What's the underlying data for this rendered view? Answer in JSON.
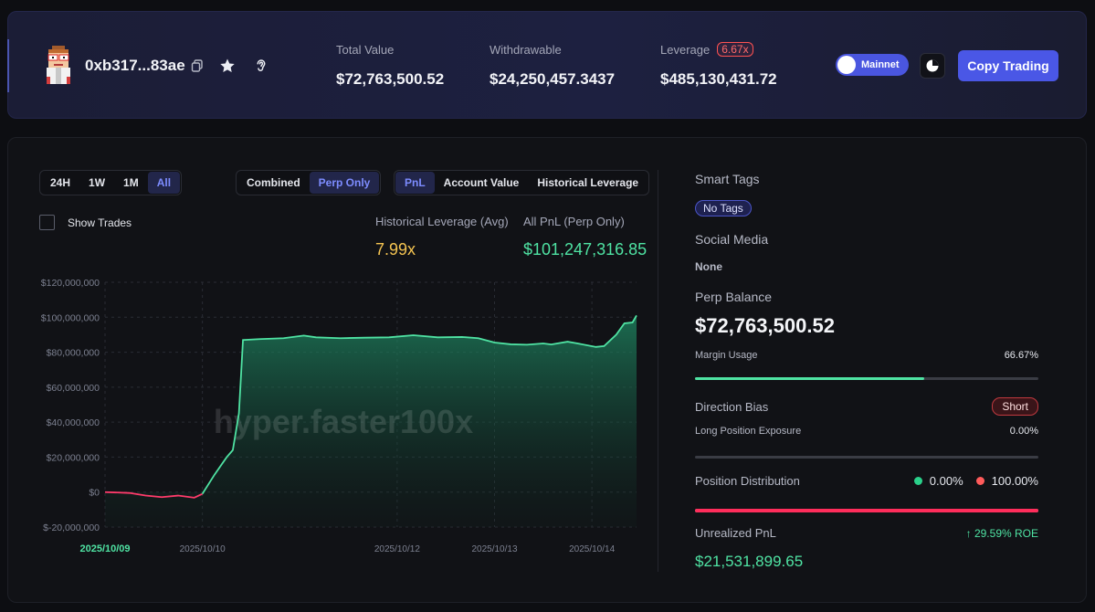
{
  "header": {
    "address": "0xb317...83ae",
    "stats": [
      {
        "label": "Total Value",
        "value": "$72,763,500.52"
      },
      {
        "label": "Withdrawable",
        "value": "$24,250,457.3437"
      },
      {
        "label": "Leverage",
        "value": "$485,130,431.72",
        "badge": "6.67x"
      }
    ],
    "network_label": "Mainnet",
    "copy_trading_label": "Copy Trading"
  },
  "controls": {
    "time_ranges": [
      "24H",
      "1W",
      "1M",
      "All"
    ],
    "time_active": "All",
    "scope": [
      "Combined",
      "Perp Only"
    ],
    "scope_active": "Perp Only",
    "views": [
      "PnL",
      "Account Value",
      "Historical Leverage"
    ],
    "view_active": "PnL",
    "show_trades_label": "Show Trades"
  },
  "metrics": {
    "hist_leverage_label": "Historical Leverage (Avg)",
    "hist_leverage_value": "7.99x",
    "all_pnl_label": "All PnL (Perp Only)",
    "all_pnl_value": "$101,247,316.85"
  },
  "chart_data": {
    "type": "area",
    "watermark": "hyper.faster100x",
    "ylim": [
      -20000000,
      120000000
    ],
    "y_ticks": [
      {
        "value": 120000000,
        "label": "$120,000,000"
      },
      {
        "value": 100000000,
        "label": "$100,000,000"
      },
      {
        "value": 80000000,
        "label": "$80,000,000"
      },
      {
        "value": 60000000,
        "label": "$60,000,000"
      },
      {
        "value": 40000000,
        "label": "$40,000,000"
      },
      {
        "value": 20000000,
        "label": "$20,000,000"
      },
      {
        "value": 0,
        "label": "$0"
      },
      {
        "value": -20000000,
        "label": "$-20,000,000"
      }
    ],
    "x_range": [
      "2025-10-09T00:00",
      "2025-10-14T11:00"
    ],
    "x_ticks": [
      {
        "date": "2025-10-09T00:00",
        "label": "2025/10/09",
        "highlight": true
      },
      {
        "date": "2025-10-10T00:00",
        "label": "2025/10/10",
        "highlight": false
      },
      {
        "date": "2025-10-12T00:00",
        "label": "2025/10/12",
        "highlight": false
      },
      {
        "date": "2025-10-13T00:00",
        "label": "2025/10/13",
        "highlight": false
      },
      {
        "date": "2025-10-14T00:00",
        "label": "2025/10/14",
        "highlight": false
      }
    ],
    "series": [
      {
        "points": [
          {
            "x": "2025-10-09T00:00",
            "y": 0
          },
          {
            "x": "2025-10-09T06:00",
            "y": -500000
          },
          {
            "x": "2025-10-09T10:00",
            "y": -2000000
          },
          {
            "x": "2025-10-09T14:00",
            "y": -2900000
          },
          {
            "x": "2025-10-09T18:00",
            "y": -2000000
          },
          {
            "x": "2025-10-09T22:00",
            "y": -3200000
          },
          {
            "x": "2025-10-10T00:00",
            "y": -1000000
          },
          {
            "x": "2025-10-10T03:00",
            "y": 10000000
          },
          {
            "x": "2025-10-10T06:00",
            "y": 20000000
          },
          {
            "x": "2025-10-10T07:30",
            "y": 24000000
          },
          {
            "x": "2025-10-10T09:00",
            "y": 45000000
          },
          {
            "x": "2025-10-10T10:00",
            "y": 87000000
          },
          {
            "x": "2025-10-10T14:00",
            "y": 87500000
          },
          {
            "x": "2025-10-10T20:00",
            "y": 88000000
          },
          {
            "x": "2025-10-11T01:00",
            "y": 89500000
          },
          {
            "x": "2025-10-11T04:00",
            "y": 88500000
          },
          {
            "x": "2025-10-11T10:00",
            "y": 88000000
          },
          {
            "x": "2025-10-11T16:00",
            "y": 88300000
          },
          {
            "x": "2025-10-11T22:00",
            "y": 88500000
          },
          {
            "x": "2025-10-12T04:00",
            "y": 89700000
          },
          {
            "x": "2025-10-12T10:00",
            "y": 88500000
          },
          {
            "x": "2025-10-12T16:00",
            "y": 88700000
          },
          {
            "x": "2025-10-12T20:00",
            "y": 88000000
          },
          {
            "x": "2025-10-13T00:00",
            "y": 85500000
          },
          {
            "x": "2025-10-13T04:00",
            "y": 84500000
          },
          {
            "x": "2025-10-13T08:00",
            "y": 84300000
          },
          {
            "x": "2025-10-13T12:00",
            "y": 85000000
          },
          {
            "x": "2025-10-13T14:00",
            "y": 84400000
          },
          {
            "x": "2025-10-13T18:00",
            "y": 86000000
          },
          {
            "x": "2025-10-13T20:00",
            "y": 85200000
          },
          {
            "x": "2025-10-14T01:00",
            "y": 83000000
          },
          {
            "x": "2025-10-14T03:00",
            "y": 83500000
          },
          {
            "x": "2025-10-14T06:00",
            "y": 90000000
          },
          {
            "x": "2025-10-14T08:00",
            "y": 96500000
          },
          {
            "x": "2025-10-14T10:00",
            "y": 97000000
          },
          {
            "x": "2025-10-14T11:00",
            "y": 101000000
          }
        ]
      }
    ],
    "colors": {
      "positive": "#4fe3a3",
      "negative": "#ff3b6b"
    }
  },
  "right": {
    "smart_tags_label": "Smart Tags",
    "no_tags": "No Tags",
    "social_media_label": "Social Media",
    "social_media_value": "None",
    "perp_balance_label": "Perp Balance",
    "perp_balance_value": "$72,763,500.52",
    "margin_usage_label": "Margin Usage",
    "margin_usage_value": "66.67%",
    "margin_usage_fraction": 0.6667,
    "direction_bias_label": "Direction Bias",
    "direction_bias_value": "Short",
    "long_exposure_label": "Long Position Exposure",
    "long_exposure_value": "0.00%",
    "long_exposure_fraction": 0.0,
    "position_distribution_label": "Position Distribution",
    "long_pct": "0.00%",
    "short_pct": "100.00%",
    "short_fraction": 1.0,
    "unrealized_pnl_label": "Unrealized PnL",
    "roe": "↑ 29.59% ROE",
    "unrealized_pnl_value": "$21,531,899.65"
  }
}
